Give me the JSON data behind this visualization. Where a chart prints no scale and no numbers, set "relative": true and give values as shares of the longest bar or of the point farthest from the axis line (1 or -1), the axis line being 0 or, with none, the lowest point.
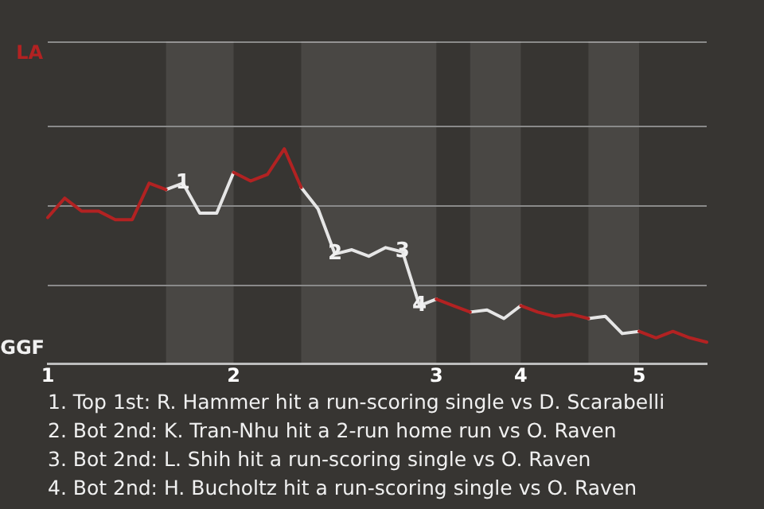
{
  "chart_data": {
    "type": "line",
    "relative": true,
    "categories": [
      "1",
      null,
      null,
      null,
      null,
      null,
      null,
      null,
      null,
      null,
      null,
      "2",
      null,
      null,
      null,
      null,
      null,
      null,
      null,
      null,
      null,
      null,
      null,
      "3",
      null,
      null,
      null,
      null,
      "4",
      null,
      null,
      null,
      null,
      null,
      null,
      "5",
      null,
      null,
      null,
      null
    ],
    "ref_lines": [
      {
        "axis": "y",
        "value": 0.37,
        "color": "#8a8a8a"
      },
      {
        "axis": "y",
        "value": 0.74,
        "color": "#8a8a8a"
      },
      {
        "axis": "y",
        "value": 1.11,
        "color": "#8a8a8a"
      }
    ],
    "legend": false,
    "marker": "none",
    "line_style": "solid",
    "series": [
      {
        "color": "#b22222",
        "values": [
          0.68,
          0.77,
          0.71,
          0.71,
          0.67,
          0.67,
          0.84,
          0.81,
          null,
          null,
          null,
          0.89,
          0.85,
          0.88,
          1,
          0.82,
          null,
          null,
          null,
          null,
          null,
          null,
          null,
          0.3,
          0.27,
          0.24,
          null,
          null,
          0.27,
          0.24,
          0.22,
          0.23,
          0.21,
          null,
          null,
          0.15,
          0.12,
          0.15,
          0.12,
          0.1
        ]
      },
      {
        "color": "#e6e6e6",
        "values": [
          null,
          null,
          null,
          null,
          null,
          null,
          null,
          0.81,
          0.84,
          0.7,
          0.7,
          0.89,
          null,
          null,
          null,
          0.82,
          0.72,
          0.51,
          0.53,
          0.5,
          0.54,
          0.52,
          0.27,
          0.3,
          null,
          0.24,
          0.25,
          0.21,
          0.27,
          null,
          null,
          null,
          0.21,
          0.22,
          0.14,
          0.15,
          null,
          null,
          null,
          null
        ]
      }
    ],
    "annotations": [
      "LA",
      "GGF",
      {
        "text": "1",
        "y": 0.84
      },
      {
        "text": "2",
        "y": 0.51
      },
      {
        "text": "3",
        "y": 0.52
      },
      {
        "text": "4",
        "y": 0.27
      },
      "1. Top 1st: R. Hammer hit a run-scoring single vs D. Scarabelli",
      "2. Bot 2nd: K. Tran-Nhu hit a 2-run home run vs O. Raven",
      "3. Bot 2nd: L. Shih hit a run-scoring single vs O. Raven",
      "4. Bot 2nd: H. Bucholtz hit a run-scoring single vs O. Raven"
    ]
  }
}
